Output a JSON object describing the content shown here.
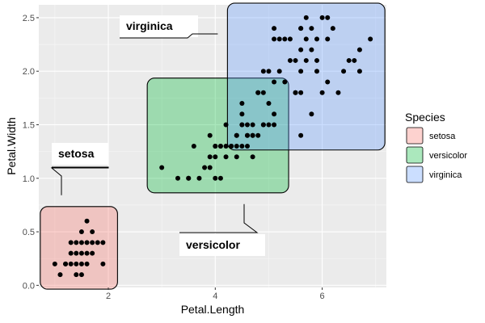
{
  "chart_data": {
    "type": "scatter",
    "xlabel": "Petal.Length",
    "ylabel": "Petal.Width",
    "xlim": [
      0.7,
      7.2
    ],
    "ylim": [
      -0.02,
      2.62
    ],
    "x_ticks": [
      2,
      4,
      6
    ],
    "y_ticks": [
      0.0,
      0.5,
      1.0,
      1.5,
      2.0,
      2.5
    ],
    "x_tick_labels": [
      "2",
      "4",
      "6"
    ],
    "y_tick_labels": [
      "0.0",
      "0.5",
      "1.0",
      "1.5",
      "2.0",
      "2.5"
    ],
    "grid": true,
    "legend": {
      "title": "Species",
      "position": "right",
      "entries": [
        "setosa",
        "versicolor",
        "virginica"
      ]
    },
    "groups": [
      {
        "name": "setosa",
        "color": "#F8766D",
        "ellipse_bounds": {
          "x": [
            1.0,
            1.9
          ],
          "y": [
            0.1,
            0.6
          ]
        },
        "label": "setosa",
        "points": [
          [
            1.4,
            0.2
          ],
          [
            1.3,
            0.2
          ],
          [
            1.5,
            0.2
          ],
          [
            1.7,
            0.4
          ],
          [
            1.4,
            0.3
          ],
          [
            1.5,
            0.1
          ],
          [
            1.1,
            0.1
          ],
          [
            1.2,
            0.2
          ],
          [
            1.3,
            0.4
          ],
          [
            1.7,
            0.3
          ],
          [
            1.5,
            0.4
          ],
          [
            1.0,
            0.2
          ],
          [
            1.7,
            0.5
          ],
          [
            1.9,
            0.2
          ],
          [
            1.6,
            0.2
          ],
          [
            1.6,
            0.4
          ],
          [
            1.4,
            0.1
          ],
          [
            1.2,
            0.2
          ],
          [
            1.3,
            0.3
          ],
          [
            1.6,
            0.6
          ],
          [
            1.9,
            0.4
          ],
          [
            1.6,
            0.3
          ],
          [
            1.5,
            0.3
          ],
          [
            1.4,
            0.4
          ],
          [
            1.5,
            0.5
          ],
          [
            1.8,
            0.4
          ]
        ]
      },
      {
        "name": "versicolor",
        "color": "#00BA38",
        "ellipse_bounds": {
          "x": [
            3.0,
            5.1
          ],
          "y": [
            1.0,
            1.8
          ]
        },
        "label": "versicolor",
        "points": [
          [
            4.7,
            1.4
          ],
          [
            4.5,
            1.5
          ],
          [
            4.9,
            1.5
          ],
          [
            4.0,
            1.3
          ],
          [
            4.6,
            1.5
          ],
          [
            3.3,
            1.0
          ],
          [
            4.6,
            1.3
          ],
          [
            3.9,
            1.4
          ],
          [
            3.5,
            1.0
          ],
          [
            4.2,
            1.5
          ],
          [
            4.0,
            1.0
          ],
          [
            4.7,
            1.4
          ],
          [
            3.6,
            1.3
          ],
          [
            4.4,
            1.4
          ],
          [
            4.1,
            1.0
          ],
          [
            4.5,
            1.5
          ],
          [
            3.9,
            1.1
          ],
          [
            4.8,
            1.8
          ],
          [
            4.0,
            1.3
          ],
          [
            4.9,
            1.5
          ],
          [
            4.7,
            1.2
          ],
          [
            4.3,
            1.3
          ],
          [
            4.4,
            1.4
          ],
          [
            4.8,
            1.4
          ],
          [
            5.0,
            1.7
          ],
          [
            3.5,
            1.0
          ],
          [
            3.8,
            1.1
          ],
          [
            3.7,
            1.0
          ],
          [
            3.9,
            1.2
          ],
          [
            5.1,
            1.6
          ],
          [
            4.5,
            1.6
          ],
          [
            4.7,
            1.5
          ],
          [
            4.4,
            1.3
          ],
          [
            4.1,
            1.3
          ],
          [
            4.0,
            1.2
          ],
          [
            4.4,
            1.2
          ],
          [
            4.6,
            1.4
          ],
          [
            4.2,
            1.2
          ],
          [
            3.0,
            1.1
          ],
          [
            4.1,
            1.3
          ],
          [
            4.3,
            1.3
          ],
          [
            4.2,
            1.3
          ],
          [
            4.5,
            1.3
          ],
          [
            4.6,
            1.4
          ]
        ]
      },
      {
        "name": "virginica",
        "color": "#619CFF",
        "ellipse_bounds": {
          "x": [
            4.5,
            6.9
          ],
          "y": [
            1.4,
            2.5
          ]
        },
        "label": "virginica",
        "points": [
          [
            6.0,
            2.5
          ],
          [
            5.1,
            1.9
          ],
          [
            5.9,
            2.1
          ],
          [
            5.6,
            1.8
          ],
          [
            5.8,
            2.2
          ],
          [
            6.6,
            2.1
          ],
          [
            4.5,
            1.7
          ],
          [
            6.3,
            1.8
          ],
          [
            6.1,
            2.5
          ],
          [
            5.3,
            1.9
          ],
          [
            5.5,
            2.1
          ],
          [
            5.0,
            2.0
          ],
          [
            5.1,
            2.4
          ],
          [
            5.3,
            2.3
          ],
          [
            5.5,
            1.8
          ],
          [
            6.7,
            2.2
          ],
          [
            6.9,
            2.3
          ],
          [
            5.0,
            1.5
          ],
          [
            5.7,
            2.3
          ],
          [
            4.9,
            2.0
          ],
          [
            6.7,
            2.0
          ],
          [
            4.9,
            1.8
          ],
          [
            5.7,
            2.1
          ],
          [
            6.0,
            1.8
          ],
          [
            4.8,
            1.8
          ],
          [
            5.8,
            1.6
          ],
          [
            6.1,
            1.9
          ],
          [
            6.4,
            2.0
          ],
          [
            5.6,
            2.2
          ],
          [
            5.1,
            1.5
          ],
          [
            5.6,
            1.4
          ],
          [
            6.1,
            2.3
          ],
          [
            5.6,
            2.4
          ],
          [
            5.5,
            1.8
          ],
          [
            5.4,
            2.1
          ],
          [
            5.6,
            2.4
          ],
          [
            5.1,
            2.3
          ],
          [
            5.9,
            2.3
          ],
          [
            5.7,
            2.5
          ],
          [
            5.2,
            2.3
          ],
          [
            5.2,
            2.0
          ],
          [
            5.4,
            2.3
          ],
          [
            6.5,
            2.1
          ],
          [
            5.9,
            2.0
          ],
          [
            6.2,
            2.4
          ],
          [
            5.8,
            2.4
          ],
          [
            5.6,
            2.0
          ]
        ]
      }
    ]
  }
}
